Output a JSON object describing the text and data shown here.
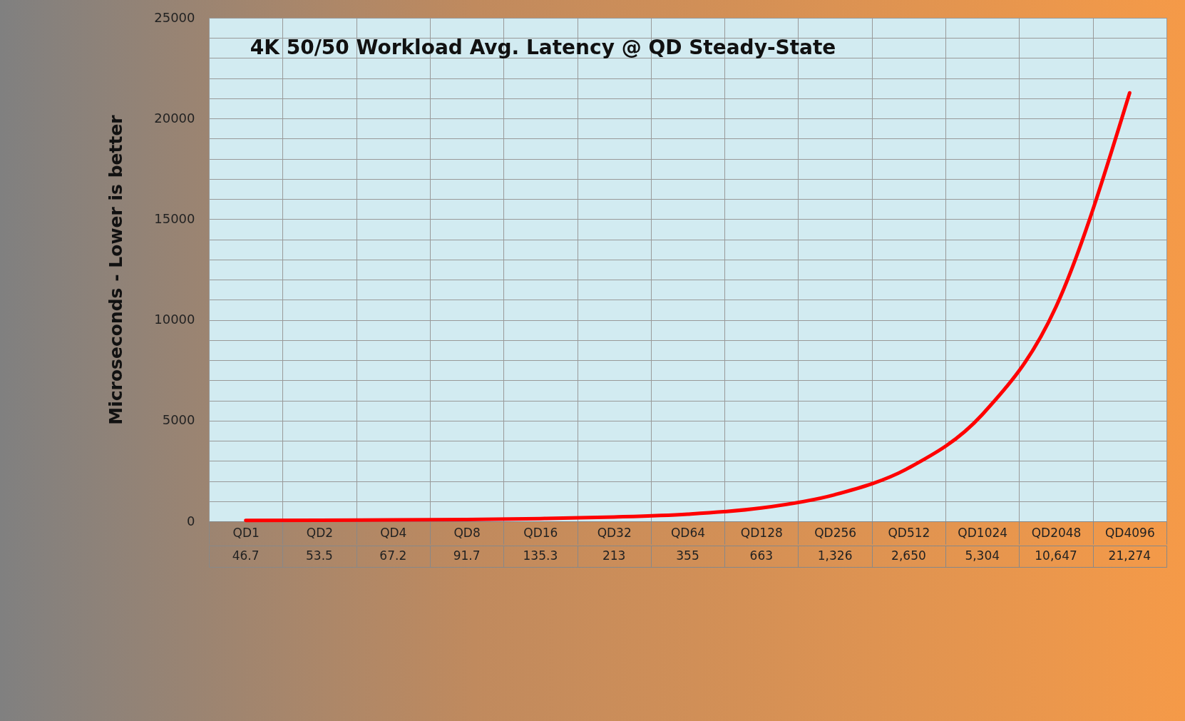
{
  "chart_data": {
    "type": "line",
    "title": "4K 50/50 Workload Avg. Latency @ QD Steady-State",
    "ylabel": "Microseconds - Lower is better",
    "categories": [
      "QD1",
      "QD2",
      "QD4",
      "QD8",
      "QD16",
      "QD32",
      "QD64",
      "QD128",
      "QD256",
      "QD512",
      "QD1024",
      "QD2048",
      "QD4096"
    ],
    "series": [
      {
        "color": "#ff0000",
        "values": [
          46.7,
          53.5,
          67.2,
          91.7,
          135.3,
          213,
          355,
          663,
          1326,
          2650,
          5304,
          10647,
          21274
        ],
        "value_labels": [
          "46.7",
          "53.5",
          "67.2",
          "91.7",
          "135.3",
          "213",
          "355",
          "663",
          "1,326",
          "2,650",
          "5,304",
          "10,647",
          "21,274"
        ]
      }
    ],
    "ylim": [
      0,
      25000
    ],
    "yticks": [
      0,
      {
        "value": 1000,
        "label": null
      },
      {
        "value": 2000,
        "label": null
      },
      {
        "value": 3000,
        "label": null
      },
      {
        "value": 4000,
        "label": null
      },
      5000,
      {
        "value": 6000,
        "label": null
      },
      {
        "value": 7000,
        "label": null
      },
      {
        "value": 8000,
        "label": null
      },
      {
        "value": 9000,
        "label": null
      },
      10000,
      {
        "value": 11000,
        "label": null
      },
      {
        "value": 12000,
        "label": null
      },
      {
        "value": 13000,
        "label": null
      },
      {
        "value": 14000,
        "label": null
      },
      15000,
      {
        "value": 16000,
        "label": null
      },
      {
        "value": 17000,
        "label": null
      },
      {
        "value": 18000,
        "label": null
      },
      {
        "value": 19000,
        "label": null
      },
      20000,
      {
        "value": 21000,
        "label": null
      },
      {
        "value": 22000,
        "label": null
      },
      {
        "value": 23000,
        "label": null
      },
      {
        "value": 24000,
        "label": null
      },
      25000
    ],
    "grid": true,
    "marker": "none",
    "line_style": "solid"
  }
}
